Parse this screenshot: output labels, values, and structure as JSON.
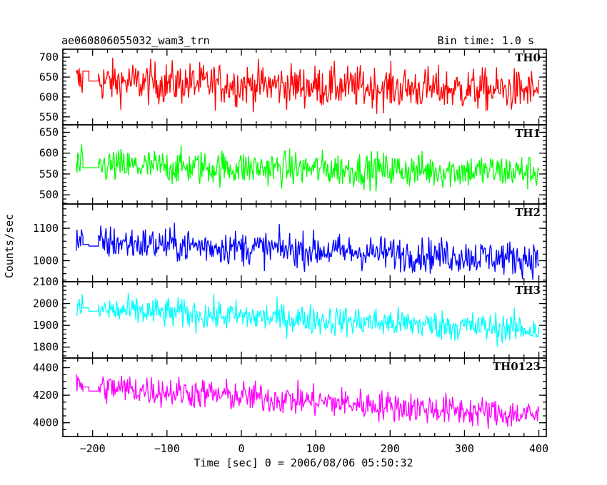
{
  "chart_data": {
    "type": "line",
    "title_left": "ae060806055032_wam3_trn",
    "title_right": "Bin time: 1.0 s",
    "ylabel": "Counts/sec",
    "xlabel": "Time [sec] 0 = 2006/08/06 05:50:32",
    "xlim": [
      -240,
      410
    ],
    "x_ticks": [
      -200,
      -100,
      0,
      100,
      200,
      300,
      400
    ],
    "x_tick_labels": [
      "−200",
      "−100",
      "0",
      "100",
      "200",
      "300",
      "400"
    ],
    "x_minor_step": 20,
    "gap": [
      -205,
      -192
    ],
    "x_start": -222,
    "x_end": 400,
    "panels": [
      {
        "name": "TH0",
        "color": "#ff0000",
        "ylim": [
          530,
          720
        ],
        "ticks": [
          550,
          600,
          650,
          700
        ],
        "minor_step": 10,
        "start_mean": 640,
        "end_mean": 615,
        "noise": 38,
        "gap_levels": [
          665,
          640
        ]
      },
      {
        "name": "TH1",
        "color": "#00ff00",
        "ylim": [
          478,
          668
        ],
        "ticks": [
          500,
          550,
          600,
          650
        ],
        "minor_step": 10,
        "start_mean": 570,
        "end_mean": 555,
        "noise": 30,
        "gap_levels": [
          565,
          565
        ]
      },
      {
        "name": "TH2",
        "color": "#0000ff",
        "ylim": [
          935,
          1175
        ],
        "ticks": [
          1000,
          1100
        ],
        "minor_step": 20,
        "start_mean": 1060,
        "end_mean": 1005,
        "noise": 38,
        "gap_levels": [
          1050,
          1045
        ]
      },
      {
        "name": "TH3",
        "color": "#00ffff",
        "ylim": [
          1750,
          2100
        ],
        "ticks": [
          1800,
          1900,
          2000,
          2100
        ],
        "minor_step": 20,
        "start_mean": 1975,
        "end_mean": 1880,
        "noise": 50,
        "gap_levels": [
          1980,
          1965
        ]
      },
      {
        "name": "TH0123",
        "color": "#ff00ff",
        "ylim": [
          3900,
          4470
        ],
        "ticks": [
          4000,
          4200,
          4400
        ],
        "minor_step": 50,
        "start_mean": 4270,
        "end_mean": 4050,
        "noise": 80,
        "gap_levels": [
          4260,
          4230
        ]
      }
    ]
  }
}
